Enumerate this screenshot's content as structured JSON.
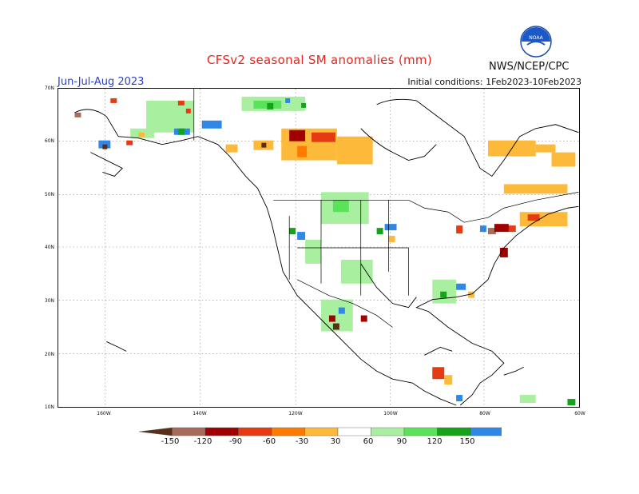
{
  "title": "CFSv2 seasonal SM anomalies (mm)",
  "org_label": "NWS/NCEP/CPC",
  "period": "Jun-Jul-Aug 2023",
  "initial_conditions": "Initial conditions: 1Feb2023-10Feb2023",
  "logo_text": "NOAA",
  "latitude_labels": [
    "70N",
    "60N",
    "50N",
    "40N",
    "30N",
    "20N",
    "10N"
  ],
  "longitude_labels": [
    "160W",
    "140W",
    "120W",
    "100W",
    "80W",
    "60W"
  ],
  "legend": {
    "ticks": [
      "-150",
      "-120",
      "-90",
      "-60",
      "-30",
      "30",
      "60",
      "90",
      "120",
      "150"
    ],
    "colors": [
      "#5a2f1a",
      "#a86b5a",
      "#a10000",
      "#e63a12",
      "#ff7b00",
      "#fdb93a",
      "#ffffff",
      "#a8f0a0",
      "#59e25a",
      "#15a31a",
      "#2f87e8",
      "#1e3bd6"
    ]
  }
}
